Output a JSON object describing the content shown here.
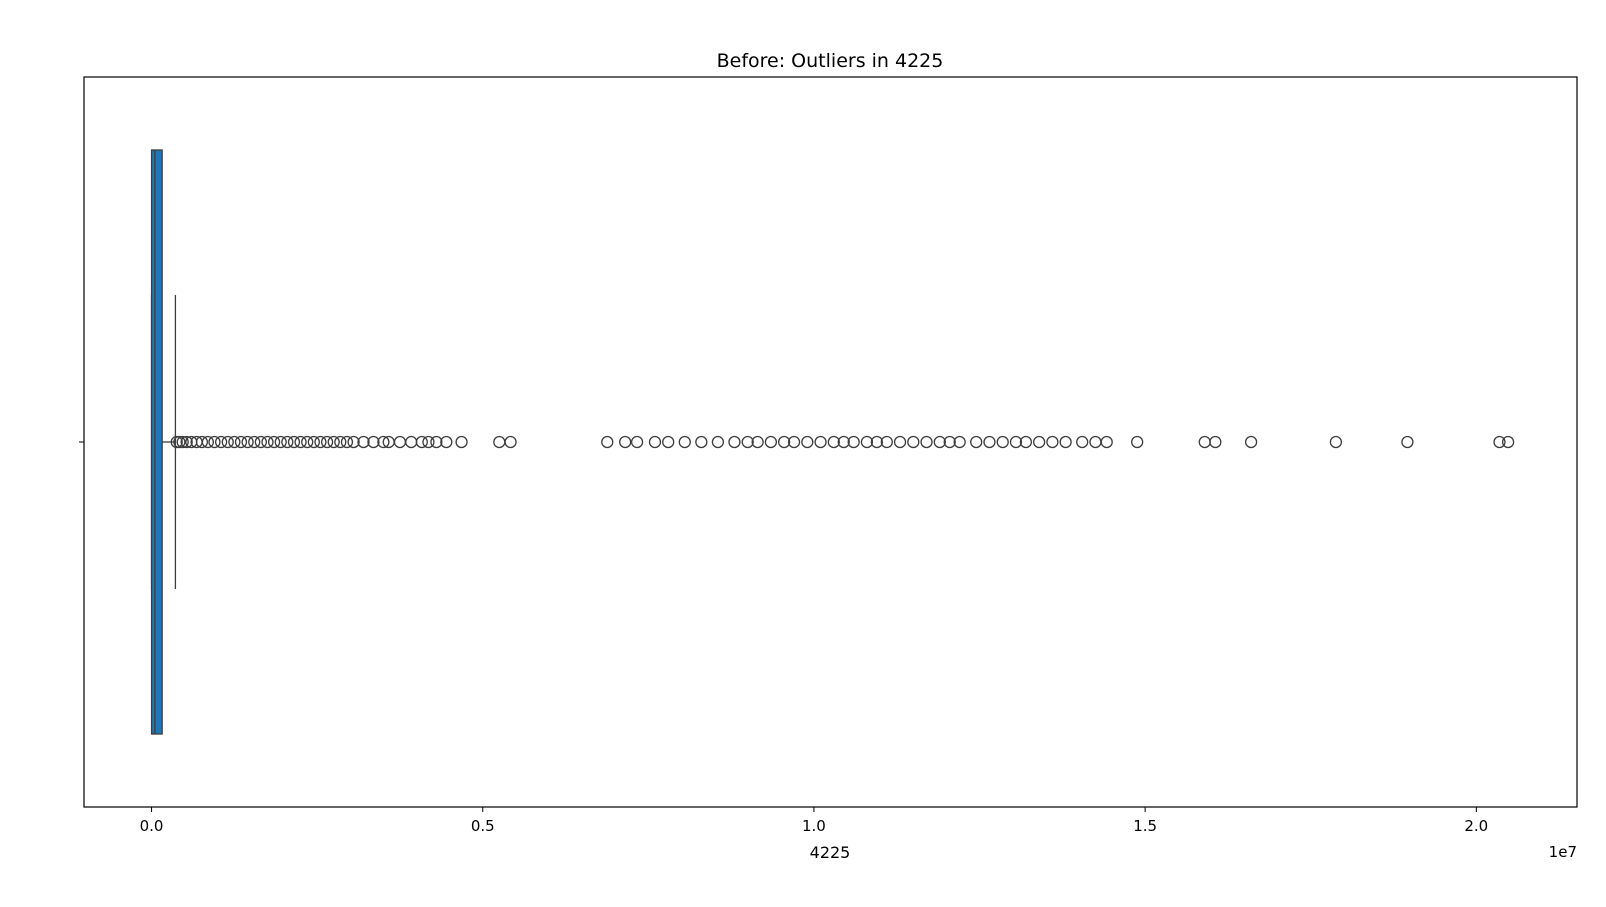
{
  "chart_data": {
    "type": "box",
    "orientation": "horizontal",
    "title": "Before: Outliers in 4225",
    "xlabel": "4225",
    "x_offset_label": "1e7",
    "xlim": [
      -1020000,
      21520000
    ],
    "x_ticks": [
      0,
      5000000,
      10000000,
      15000000,
      20000000
    ],
    "x_tick_labels": [
      "0.0",
      "0.5",
      "1.0",
      "1.5",
      "2.0"
    ],
    "box_color": "#1f77b4",
    "box": {
      "q1": 0,
      "median": 50000,
      "q3": 160000,
      "whisker_low": 0,
      "whisker_high": 360000
    },
    "outliers": [
      380000,
      420000,
      470000,
      530000,
      600000,
      680000,
      760000,
      850000,
      950000,
      1050000,
      1150000,
      1250000,
      1350000,
      1450000,
      1550000,
      1650000,
      1750000,
      1850000,
      1950000,
      2050000,
      2150000,
      2250000,
      2350000,
      2450000,
      2550000,
      2650000,
      2750000,
      2850000,
      2950000,
      3050000,
      3200000,
      3350000,
      3500000,
      3580000,
      3750000,
      3920000,
      4080000,
      4180000,
      4300000,
      4450000,
      4680000,
      5250000,
      5420000,
      6880000,
      7150000,
      7330000,
      7600000,
      7800000,
      8050000,
      8300000,
      8550000,
      8800000,
      9000000,
      9150000,
      9350000,
      9550000,
      9700000,
      9900000,
      10100000,
      10300000,
      10450000,
      10600000,
      10800000,
      10950000,
      11100000,
      11300000,
      11500000,
      11700000,
      11900000,
      12050000,
      12200000,
      12450000,
      12650000,
      12850000,
      13050000,
      13200000,
      13400000,
      13600000,
      13800000,
      14050000,
      14250000,
      14420000,
      14880000,
      15900000,
      16060000,
      16600000,
      17880000,
      18960000,
      20350000,
      20480000
    ]
  }
}
